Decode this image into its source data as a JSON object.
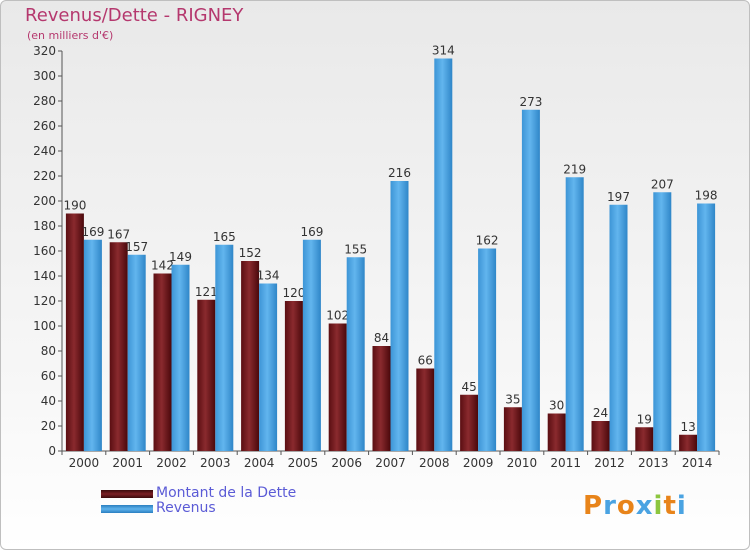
{
  "chart_data": {
    "type": "bar",
    "title": "Revenus/Dette - RIGNEY",
    "subtitle": "(en milliers d'€)",
    "categories": [
      "2000",
      "2001",
      "2002",
      "2003",
      "2004",
      "2005",
      "2006",
      "2007",
      "2008",
      "2009",
      "2010",
      "2011",
      "2012",
      "2013",
      "2014"
    ],
    "series": [
      {
        "name": "Montant de la Dette",
        "color": "#7a1f24",
        "values": [
          190,
          167,
          142,
          121,
          152,
          120,
          102,
          84,
          66,
          45,
          35,
          30,
          24,
          19,
          13
        ]
      },
      {
        "name": "Revenus",
        "color": "#4aa3e2",
        "values": [
          169,
          157,
          149,
          165,
          134,
          169,
          155,
          216,
          314,
          162,
          273,
          219,
          197,
          207,
          198
        ]
      }
    ],
    "ylim": [
      0,
      320
    ],
    "yticks": [
      0,
      20,
      40,
      60,
      80,
      100,
      120,
      140,
      160,
      180,
      200,
      220,
      240,
      260,
      280,
      300,
      320
    ],
    "grid": false,
    "legend": "bottom-left"
  },
  "legend": {
    "items": [
      {
        "label": "Montant de la Dette",
        "color": "#6b1418"
      },
      {
        "label": "Revenus",
        "color": "#4aa3e2"
      }
    ]
  },
  "logo": {
    "text": "Proxiti"
  }
}
